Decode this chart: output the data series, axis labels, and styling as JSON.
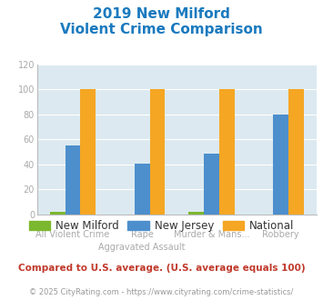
{
  "title_line1": "2019 New Milford",
  "title_line2": "Violent Crime Comparison",
  "title_color": "#1a7abf",
  "new_milford": [
    2,
    0,
    2,
    0
  ],
  "new_jersey": [
    55,
    41,
    49,
    80
  ],
  "national": [
    100,
    100,
    100,
    100
  ],
  "color_milford": "#7cb82f",
  "color_nj": "#4d8fcc",
  "color_national": "#f5a623",
  "ylim": [
    0,
    120
  ],
  "yticks": [
    0,
    20,
    40,
    60,
    80,
    100,
    120
  ],
  "plot_bg": "#dce9f0",
  "grid_color": "#ffffff",
  "note_text": "Compared to U.S. average. (U.S. average equals 100)",
  "note_color": "#c0392b",
  "footer_prefix": "© 2025 CityRating.com - ",
  "footer_link": "https://www.cityrating.com/crime-statistics/",
  "footer_color": "#999999",
  "footer_link_color": "#4d8fcc",
  "tick_label_color": "#aaaaaa",
  "bar_width": 0.22,
  "top_labels": [
    "",
    "Rape",
    "Murder & Mans...",
    ""
  ],
  "bottom_labels": [
    "All Violent Crime",
    "Aggravated Assault",
    "",
    "Robbery"
  ]
}
